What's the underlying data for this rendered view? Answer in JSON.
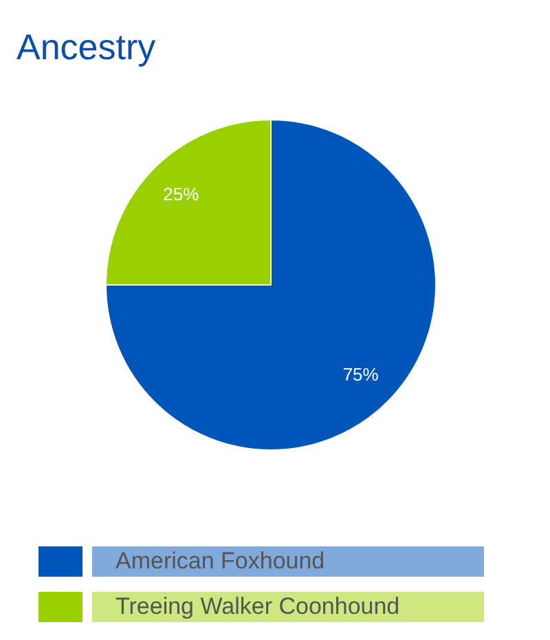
{
  "chart_data": {
    "type": "pie",
    "title": "Ancestry",
    "categories": [
      "American Foxhound",
      "Treeing Walker Coonhound"
    ],
    "values": [
      75,
      25
    ],
    "colors": [
      "#0055b8",
      "#99d100"
    ],
    "value_labels": [
      "75%",
      "25%"
    ],
    "legend": "bottom"
  }
}
